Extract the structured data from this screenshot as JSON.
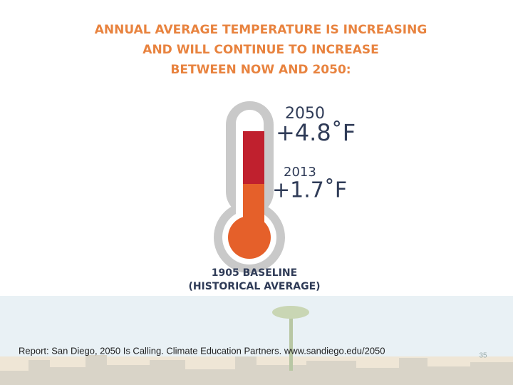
{
  "title": [
    "ANNUAL AVERAGE TEMPERATURE IS INCREASING",
    "AND WILL CONTINUE TO INCREASE",
    "BETWEEN NOW AND 2050:"
  ],
  "readings": [
    {
      "year": "2050",
      "change": "+4.8˚F"
    },
    {
      "year": "2013",
      "change": "+1.7˚F"
    }
  ],
  "baseline": {
    "label": "1905 BASELINE",
    "note": "(HISTORICAL AVERAGE)"
  },
  "footer": {
    "source": "Report: San Diego, 2050 Is Calling. Climate Education Partners. www.sandiego.edu/2050",
    "page": 35
  }
}
